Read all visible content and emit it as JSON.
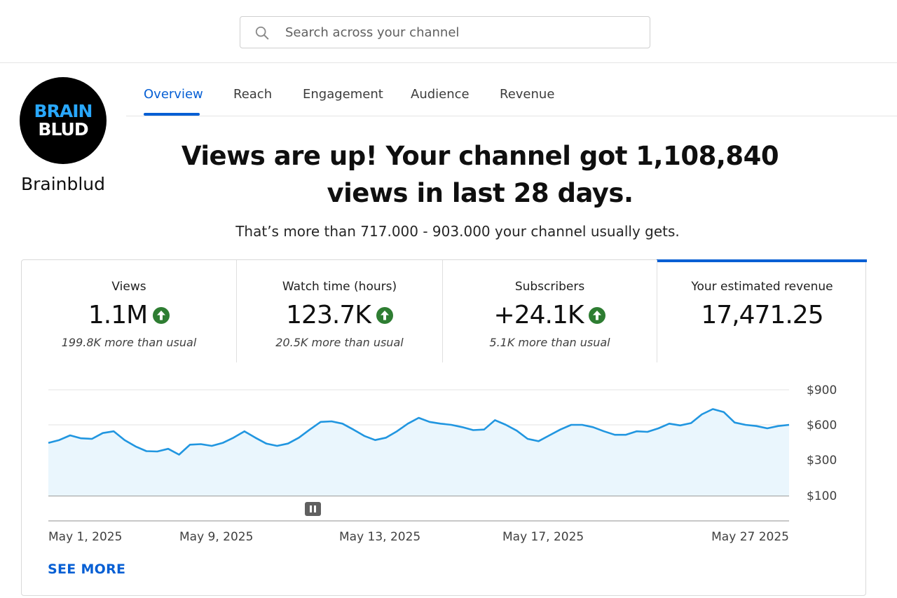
{
  "search": {
    "placeholder": "Search across your channel"
  },
  "channel": {
    "logo_line1": "BRAIN",
    "logo_line2": "BLUD",
    "name": "Brainblud"
  },
  "tabs": [
    {
      "label": "Overview",
      "active": true
    },
    {
      "label": "Reach",
      "active": false
    },
    {
      "label": "Engagement",
      "active": false
    },
    {
      "label": "Audience",
      "active": false
    },
    {
      "label": "Revenue",
      "active": false
    }
  ],
  "headline": "Views are up! Your channel got 1,108,840 views in last 28 days.",
  "subline": "That’s more than 717.000 - 903.000 your channel usually gets.",
  "metrics": [
    {
      "label": "Views",
      "value": "1.1M",
      "trend": "up",
      "note": "199.8K more than usual"
    },
    {
      "label": "Watch time (hours)",
      "value": "123.7K",
      "trend": "up",
      "note": "20.5K more than usual"
    },
    {
      "label": "Subscribers",
      "value": "+24.1K",
      "trend": "up",
      "note": "5.1K more than usual"
    },
    {
      "label": "Your estimated revenue",
      "value": "17,471.25",
      "trend": "",
      "note": "",
      "selected": true
    }
  ],
  "colors": {
    "accent": "#065fd4",
    "trend_up": "#2e7d32",
    "line": "#2196e0",
    "area": "#eaf6fd"
  },
  "chart_data": {
    "type": "area",
    "title": "",
    "xlabel": "",
    "ylabel": "",
    "y_tick_labels": [
      "$900",
      "$600",
      "$300",
      "$100"
    ],
    "x_tick_labels": [
      "May 1, 2025",
      "May 9, 2025",
      "May 13, 2025",
      "May 17, 2025",
      "May 27 2025"
    ],
    "grid": true,
    "series": [
      {
        "values": [
          445,
          470,
          510,
          485,
          480,
          530,
          545,
          470,
          415,
          375,
          372,
          395,
          345,
          430,
          435,
          420,
          445,
          490,
          545,
          490,
          440,
          420,
          440,
          490,
          560,
          625,
          630,
          610,
          560,
          505,
          470,
          490,
          545,
          610,
          660,
          625,
          610,
          600,
          580,
          555,
          560,
          640,
          600,
          550,
          480,
          460,
          510,
          560,
          600,
          600,
          580,
          545,
          515,
          515,
          545,
          540,
          570,
          610,
          595,
          615,
          690,
          735,
          710,
          620,
          600,
          590,
          570,
          590,
          600
        ]
      }
    ]
  },
  "see_more": "SEE MORE",
  "pause_control": "pause-icon"
}
